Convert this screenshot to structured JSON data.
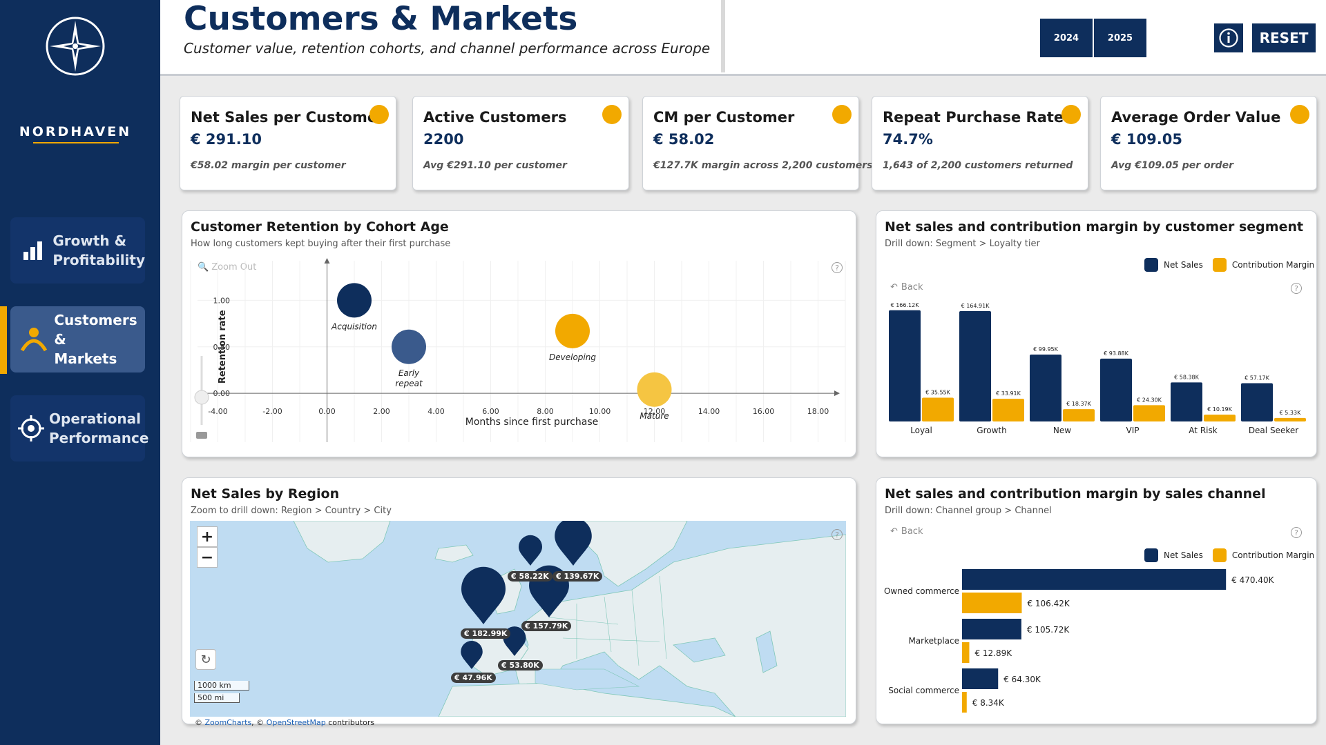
{
  "brand": {
    "name": "NORDHAVEN"
  },
  "nav": [
    {
      "label_line1": "Growth &",
      "label_line2": "Profitability"
    },
    {
      "label_line1": "Customers &",
      "label_line2": "Markets"
    },
    {
      "label_line1": "Operational",
      "label_line2": "Performance"
    }
  ],
  "header": {
    "title": "Customers & Markets",
    "subtitle": "Customer value, retention cohorts, and channel performance across Europe",
    "years": [
      "2024",
      "2025"
    ],
    "reset_label": "RESET"
  },
  "kpis": [
    {
      "title": "Net Sales per Customer",
      "value": "€ 291.10",
      "sub": "€58.02 margin per customer"
    },
    {
      "title": "Active Customers",
      "value": "2200",
      "sub": "Avg €291.10 per customer"
    },
    {
      "title": "CM per Customer",
      "value": "€ 58.02",
      "sub": "€127.7K margin across 2,200 customers"
    },
    {
      "title": "Repeat Purchase Rate",
      "value": "74.7%",
      "sub": "1,643 of 2,200 customers returned"
    },
    {
      "title": "Average Order Value",
      "value": "€ 109.05",
      "sub": "Avg €109.05 per order"
    }
  ],
  "colors": {
    "navy": "#0e2e5c",
    "gold": "#f2a900",
    "blue_mid": "#3a5a8c"
  },
  "retention": {
    "title": "Customer Retention by Cohort Age",
    "subtitle": "How long customers kept buying after their first purchase",
    "zoom_out_label": "Zoom Out",
    "chart_data": {
      "type": "scatter",
      "xlabel": "Months since first purchase",
      "ylabel": "Retention rate",
      "xlim": [
        -5,
        19
      ],
      "ylim": [
        -0.6,
        1.5
      ],
      "xticks": [
        "-4.00",
        "-2.00",
        "0.00",
        "2.00",
        "4.00",
        "6.00",
        "8.00",
        "10.00",
        "12.00",
        "14.00",
        "16.00",
        "18.00"
      ],
      "yticks": [
        "0.00",
        "0.50",
        "1.00"
      ],
      "points": [
        {
          "label": "Acquisition",
          "x": 1,
          "y": 1.0,
          "color": "#0e2e5c"
        },
        {
          "label": "Early repeat",
          "x": 3,
          "y": 0.5,
          "color": "#3a5a8c"
        },
        {
          "label": "Developing",
          "x": 9,
          "y": 0.67,
          "color": "#f2a900"
        },
        {
          "label": "Mature",
          "x": 12,
          "y": 0.04,
          "color": "#f5c542"
        }
      ]
    }
  },
  "segments": {
    "title": "Net sales and contribution margin by customer segment",
    "subtitle": "Drill down: Segment > Loyalty tier",
    "back_label": "Back",
    "legend": [
      "Net Sales",
      "Contribution Margin"
    ],
    "chart_data": {
      "type": "bar",
      "categories": [
        "Loyal",
        "Growth",
        "New",
        "VIP",
        "At Risk",
        "Deal Seeker"
      ],
      "series": [
        {
          "name": "Net Sales",
          "values": [
            166.12,
            164.91,
            99.95,
            93.88,
            58.38,
            57.17
          ],
          "labels": [
            "€ 166.12K",
            "€ 164.91K",
            "€ 99.95K",
            "€ 93.88K",
            "€ 58.38K",
            "€ 57.17K"
          ]
        },
        {
          "name": "Contribution Margin",
          "values": [
            35.55,
            33.91,
            18.37,
            24.3,
            10.19,
            5.33
          ],
          "labels": [
            "€ 35.55K",
            "€ 33.91K",
            "€ 18.37K",
            "€ 24.30K",
            "€ 10.19K",
            "€ 5.33K"
          ]
        }
      ],
      "ylim": [
        0,
        170
      ]
    }
  },
  "region": {
    "title": "Net Sales by Region",
    "subtitle": "Zoom to drill down: Region > Country > City",
    "scale_km": "1000 km",
    "scale_mi": "500 mi",
    "attribution_pre": "© ",
    "attribution_link1": "ZoomCharts",
    "attribution_mid": ", © ",
    "attribution_link2": "OpenStreetMap",
    "attribution_post": " contributors",
    "markers": [
      {
        "label": "€ 182.99K",
        "value": 182.99
      },
      {
        "label": "€ 58.22K",
        "value": 58.22
      },
      {
        "label": "€ 139.67K",
        "value": 139.67
      },
      {
        "label": "€ 157.79K",
        "value": 157.79
      },
      {
        "label": "€ 53.80K",
        "value": 53.8
      },
      {
        "label": "€ 47.96K",
        "value": 47.96
      }
    ]
  },
  "channels": {
    "title": "Net sales and contribution margin by sales channel",
    "subtitle": "Drill down: Channel group > Channel",
    "back_label": "Back",
    "legend": [
      "Net Sales",
      "Contribution Margin"
    ],
    "chart_data": {
      "type": "bar",
      "orientation": "horizontal",
      "categories": [
        "Owned commerce",
        "Marketplace",
        "Social commerce"
      ],
      "series": [
        {
          "name": "Net Sales",
          "values": [
            470.4,
            105.72,
            64.3
          ],
          "labels": [
            "€ 470.40K",
            "€ 105.72K",
            "€ 64.30K"
          ]
        },
        {
          "name": "Contribution Margin",
          "values": [
            106.42,
            12.89,
            8.34
          ],
          "labels": [
            "€ 106.42K",
            "€ 12.89K",
            "€ 8.34K"
          ]
        }
      ],
      "xlim": [
        0,
        480
      ]
    }
  }
}
